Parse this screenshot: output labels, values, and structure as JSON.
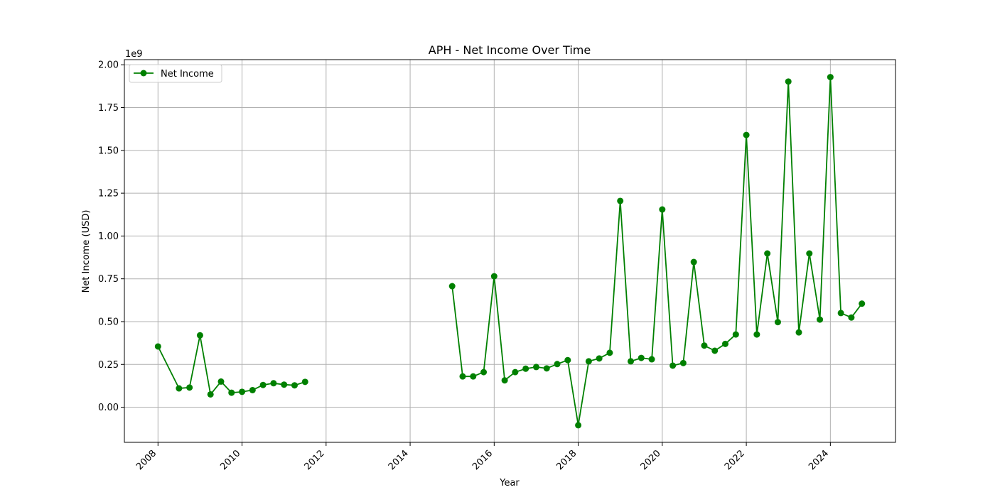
{
  "chart_data": {
    "type": "line",
    "title": "APH - Net Income Over Time",
    "xlabel": "Year",
    "ylabel": "Net Income (USD)",
    "y_offset_label": "1e9",
    "y_multiplier": 1000000000,
    "xlim": [
      2007.2,
      2025.55
    ],
    "ylim": [
      -0.205,
      2.03
    ],
    "x_ticks": [
      2008,
      2010,
      2012,
      2014,
      2016,
      2018,
      2020,
      2022,
      2024
    ],
    "y_ticks": [
      0.0,
      0.25,
      0.5,
      0.75,
      1.0,
      1.25,
      1.5,
      1.75,
      2.0
    ],
    "y_tick_labels": [
      "0.00",
      "0.25",
      "0.50",
      "0.75",
      "1.00",
      "1.25",
      "1.50",
      "1.75",
      "2.00"
    ],
    "grid": true,
    "legend": "top-left",
    "series": [
      {
        "name": "Net Income",
        "color": "#008000",
        "marker": "circle",
        "segments": [
          {
            "x": [
              2008.0,
              2008.5,
              2008.75,
              2009.0,
              2009.25,
              2009.5,
              2009.75,
              2010.0,
              2010.25,
              2010.5,
              2010.75,
              2011.0,
              2011.25,
              2011.5
            ],
            "y": [
              0.355,
              0.11,
              0.115,
              0.42,
              0.075,
              0.15,
              0.085,
              0.09,
              0.1,
              0.13,
              0.14,
              0.132,
              0.128,
              0.148
            ]
          },
          {
            "x": [
              2015.0,
              2015.25,
              2015.5,
              2015.75,
              2016.0,
              2016.25,
              2016.5,
              2016.75,
              2017.0,
              2017.25,
              2017.5,
              2017.75,
              2018.0,
              2018.25,
              2018.5,
              2018.75,
              2019.0,
              2019.25,
              2019.5,
              2019.75,
              2020.0,
              2020.25,
              2020.5,
              2020.75,
              2021.0,
              2021.25,
              2021.5,
              2021.75,
              2022.0,
              2022.25,
              2022.5,
              2022.75,
              2023.0,
              2023.25,
              2023.5,
              2023.75,
              2024.0,
              2024.25,
              2024.5,
              2024.75
            ],
            "y": [
              0.707,
              0.18,
              0.18,
              0.205,
              0.765,
              0.157,
              0.205,
              0.225,
              0.235,
              0.227,
              0.252,
              0.275,
              -0.105,
              0.268,
              0.285,
              0.318,
              1.205,
              0.268,
              0.288,
              0.28,
              1.155,
              0.243,
              0.258,
              0.848,
              0.36,
              0.33,
              0.37,
              0.425,
              1.59,
              0.425,
              0.898,
              0.497,
              1.902,
              0.437,
              0.898,
              0.512,
              1.928,
              0.55,
              0.524,
              0.605
            ]
          }
        ]
      }
    ]
  }
}
